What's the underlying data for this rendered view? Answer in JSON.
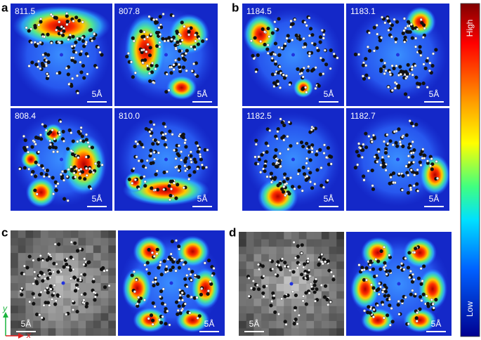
{
  "panels": [
    {
      "label": "a",
      "tiles": [
        {
          "value": "811.5",
          "scale_bar": "5Å"
        },
        {
          "value": "807.8",
          "scale_bar": "5Å"
        },
        {
          "value": "808.4",
          "scale_bar": "5Å"
        },
        {
          "value": "810.0",
          "scale_bar": "5Å"
        }
      ]
    },
    {
      "label": "b",
      "tiles": [
        {
          "value": "1184.5",
          "scale_bar": "5Å"
        },
        {
          "value": "1183.1",
          "scale_bar": "5Å"
        },
        {
          "value": "1182.5",
          "scale_bar": "5Å"
        },
        {
          "value": "1182.7",
          "scale_bar": "5Å"
        }
      ]
    },
    {
      "label": "c",
      "tiles": [
        {
          "scale_bar": "5Å"
        },
        {
          "scale_bar": "5Å"
        }
      ]
    },
    {
      "label": "d",
      "tiles": [
        {
          "scale_bar": "5Å"
        },
        {
          "scale_bar": "5Å"
        }
      ]
    }
  ],
  "colorbar": {
    "high": "High",
    "low": "Low"
  },
  "axes": {
    "y": "y",
    "x": "x"
  }
}
